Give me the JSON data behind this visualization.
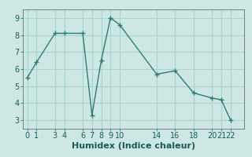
{
  "x": [
    0,
    1,
    3,
    4,
    6,
    7,
    8,
    9,
    10,
    14,
    16,
    18,
    20,
    21,
    22
  ],
  "y": [
    5.5,
    6.4,
    8.1,
    8.1,
    8.1,
    3.3,
    6.5,
    9.0,
    8.6,
    5.7,
    5.9,
    4.6,
    4.3,
    4.2,
    3.0
  ],
  "line_color": "#2e7d6e",
  "marker": "+",
  "marker_size": 4,
  "marker_linewidth": 1.0,
  "xlabel": "Humidex (Indice chaleur)",
  "xlim": [
    -0.5,
    23.5
  ],
  "ylim": [
    2.5,
    9.5
  ],
  "xticks": [
    0,
    1,
    3,
    4,
    6,
    7,
    8,
    9,
    10,
    14,
    16,
    18,
    20,
    21,
    22
  ],
  "yticks": [
    3,
    4,
    5,
    6,
    7,
    8,
    9
  ],
  "background_color": "#cde8e4",
  "grid_color": "#a8d4cf",
  "line_width": 1.0,
  "tick_fontsize": 7,
  "xlabel_fontsize": 8
}
